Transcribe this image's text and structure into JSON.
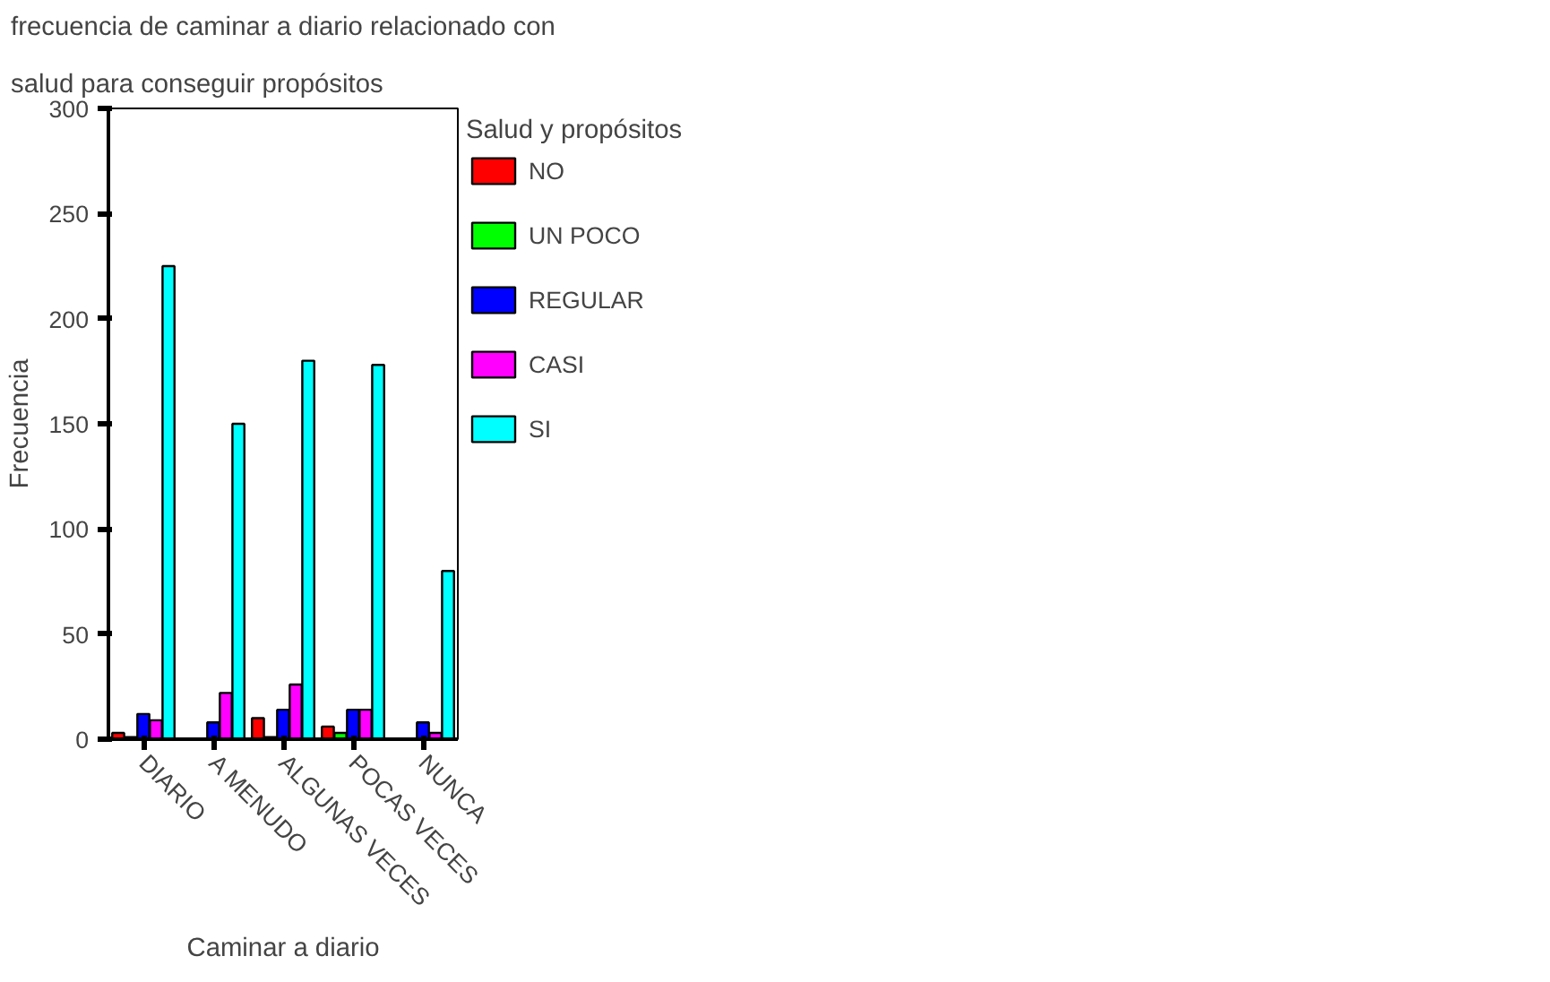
{
  "chart_data": {
    "type": "bar",
    "title": "frecuencia de caminar a diario relacionado con\nsalud para conseguir propósitos",
    "xlabel": "Caminar a diario",
    "ylabel": "Frecuencia",
    "legend_title": "Salud y propósitos",
    "categories": [
      "DIARIO",
      "A MENUDO",
      "ALGUNAS VECES",
      "POCAS VECES",
      "NUNCA"
    ],
    "series": [
      {
        "name": "NO",
        "color": "#ff0000",
        "values": [
          3,
          0,
          10,
          6,
          0
        ]
      },
      {
        "name": "UN POCO",
        "color": "#00ff00",
        "values": [
          1,
          0,
          1,
          3,
          0
        ]
      },
      {
        "name": "REGULAR",
        "color": "#0000ff",
        "values": [
          12,
          8,
          14,
          14,
          8
        ]
      },
      {
        "name": "CASI",
        "color": "#ff00ff",
        "values": [
          9,
          22,
          26,
          14,
          3
        ]
      },
      {
        "name": "SI",
        "color": "#00ffff",
        "values": [
          225,
          150,
          180,
          178,
          80
        ]
      }
    ],
    "ylim": [
      0,
      300
    ],
    "yticks": [
      0,
      50,
      100,
      150,
      200,
      250,
      300
    ],
    "grid": false,
    "legend": "right"
  }
}
